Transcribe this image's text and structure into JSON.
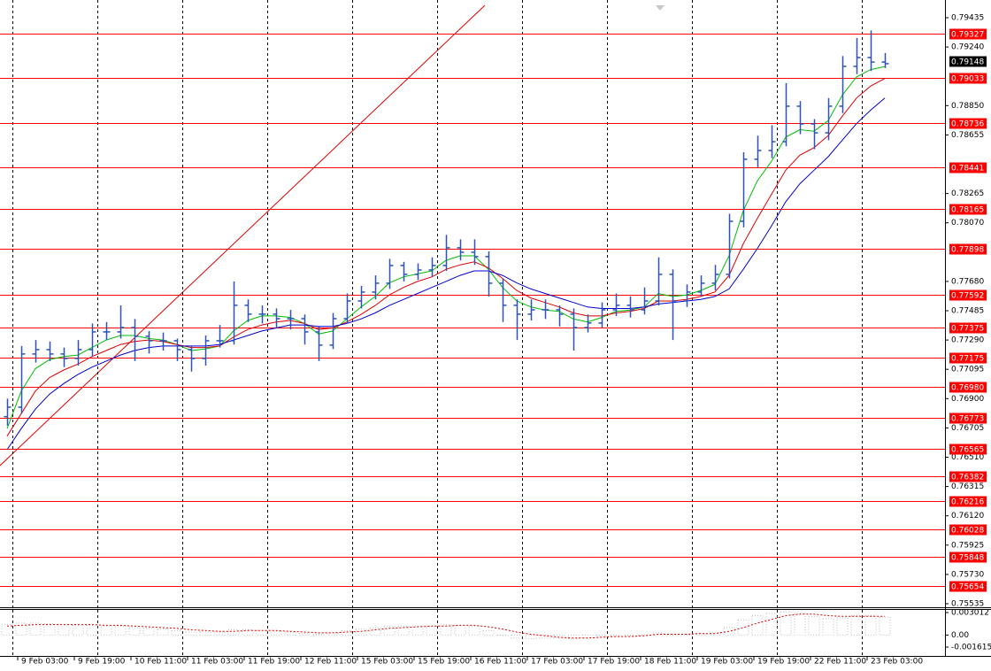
{
  "chart_data": {
    "type": "ohlc",
    "time_labels": [
      "9 Feb 03:00",
      "9 Feb 19:00",
      "10 Feb 11:00",
      "11 Feb 03:00",
      "11 Feb 19:00",
      "12 Feb 11:00",
      "15 Feb 03:00",
      "15 Feb 19:00",
      "16 Feb 11:00",
      "17 Feb 03:00",
      "17 Feb 19:00",
      "18 Feb 11:00",
      "19 Feb 03:00",
      "19 Feb 19:00",
      "22 Feb 11:00",
      "23 Feb 03:00"
    ],
    "color": "#2a52be",
    "open": [
      0.7678,
      0.76843,
      0.77197,
      0.77226,
      0.77197,
      0.77167,
      0.77226,
      0.77344,
      0.77344,
      0.77373,
      0.77315,
      0.77285,
      0.77285,
      0.77226,
      0.77167,
      0.77285,
      0.77285,
      0.77521,
      0.77462,
      0.77462,
      0.77432,
      0.77432,
      0.77344,
      0.77256,
      0.77432,
      0.7755,
      0.77609,
      0.77668,
      0.77786,
      0.77727,
      0.77756,
      0.77786,
      0.77904,
      0.77874,
      0.77845,
      0.77668,
      0.77521,
      0.77462,
      0.77491,
      0.77491,
      0.77462,
      0.77373,
      0.77403,
      0.77491,
      0.77521,
      0.77491,
      0.7755,
      0.77727,
      0.7755,
      0.77609,
      0.77668,
      0.77727,
      0.7808,
      0.78493,
      0.78551,
      0.7861,
      0.78846,
      0.78728,
      0.78669,
      0.78846,
      0.79111,
      0.7917,
      0.7914
    ],
    "high": [
      0.769,
      0.7725,
      0.7729,
      0.7728,
      0.7724,
      0.7729,
      0.774,
      0.7741,
      0.7752,
      0.7743,
      0.7735,
      0.7734,
      0.773,
      0.7725,
      0.7732,
      0.7739,
      0.7768,
      0.7756,
      0.7752,
      0.775,
      0.7749,
      0.7746,
      0.7738,
      0.7747,
      0.776,
      0.7765,
      0.7772,
      0.7783,
      0.7781,
      0.778,
      0.7784,
      0.7799,
      0.7796,
      0.7796,
      0.7788,
      0.777,
      0.7756,
      0.7756,
      0.7756,
      0.7752,
      0.775,
      0.7746,
      0.7754,
      0.776,
      0.7758,
      0.7764,
      0.7784,
      0.7776,
      0.7766,
      0.7772,
      0.7779,
      0.7813,
      0.7854,
      0.7865,
      0.7872,
      0.79,
      0.7888,
      0.7876,
      0.789,
      0.7918,
      0.793,
      0.7935,
      0.792
    ],
    "low": [
      0.7672,
      0.768,
      0.7714,
      0.7715,
      0.7711,
      0.7712,
      0.7718,
      0.7729,
      0.773,
      0.7715,
      0.772,
      0.7722,
      0.7715,
      0.7708,
      0.7712,
      0.7724,
      0.7726,
      0.7741,
      0.774,
      0.7737,
      0.7736,
      0.7726,
      0.7715,
      0.7723,
      0.774,
      0.775,
      0.7756,
      0.7763,
      0.7768,
      0.7769,
      0.7771,
      0.7775,
      0.7782,
      0.7779,
      0.7758,
      0.7741,
      0.7729,
      0.7742,
      0.7743,
      0.7738,
      0.7722,
      0.7734,
      0.7737,
      0.7745,
      0.7744,
      0.7746,
      0.7752,
      0.7729,
      0.7751,
      0.7758,
      0.7762,
      0.777,
      0.7804,
      0.7844,
      0.785,
      0.7858,
      0.7866,
      0.7856,
      0.7862,
      0.788,
      0.7906,
      0.7908,
      0.791
    ],
    "close": [
      0.76843,
      0.77197,
      0.77226,
      0.77197,
      0.77167,
      0.77226,
      0.77344,
      0.77344,
      0.77373,
      0.77315,
      0.77285,
      0.77285,
      0.77226,
      0.77167,
      0.77285,
      0.77285,
      0.77521,
      0.77462,
      0.77462,
      0.77432,
      0.77432,
      0.77344,
      0.77256,
      0.77432,
      0.7755,
      0.77609,
      0.77668,
      0.77786,
      0.77727,
      0.77756,
      0.77786,
      0.77904,
      0.77874,
      0.77845,
      0.77668,
      0.77521,
      0.77462,
      0.77491,
      0.77491,
      0.77462,
      0.77373,
      0.77403,
      0.77491,
      0.77521,
      0.77491,
      0.7755,
      0.77727,
      0.7755,
      0.77609,
      0.77668,
      0.77727,
      0.7808,
      0.78493,
      0.78551,
      0.7861,
      0.78846,
      0.78728,
      0.78669,
      0.78846,
      0.79111,
      0.7917,
      0.7914,
      0.79129
    ],
    "series": [
      {
        "color": "#00c000",
        "values": [
          0.767,
          0.7695,
          0.771,
          0.7716,
          0.7718,
          0.7719,
          0.7724,
          0.7729,
          0.7732,
          0.7732,
          0.773,
          0.7729,
          0.7726,
          0.7722,
          0.7723,
          0.7725,
          0.7735,
          0.7742,
          0.7745,
          0.7745,
          0.7744,
          0.774,
          0.7733,
          0.7735,
          0.7743,
          0.7751,
          0.7758,
          0.7767,
          0.7771,
          0.7773,
          0.7775,
          0.7782,
          0.7785,
          0.7785,
          0.7776,
          0.7764,
          0.7755,
          0.7751,
          0.7749,
          0.7748,
          0.7743,
          0.7741,
          0.7744,
          0.7748,
          0.7749,
          0.7751,
          0.776,
          0.7758,
          0.7759,
          0.7762,
          0.7766,
          0.7785,
          0.7815,
          0.7835,
          0.7848,
          0.7864,
          0.7869,
          0.7868,
          0.7875,
          0.7892,
          0.7904,
          0.7909,
          0.7911
        ]
      },
      {
        "color": "#e00000",
        "values": [
          0.7665,
          0.768,
          0.7695,
          0.7704,
          0.7709,
          0.7713,
          0.7718,
          0.7722,
          0.7726,
          0.7728,
          0.7729,
          0.7728,
          0.7726,
          0.7724,
          0.7724,
          0.7725,
          0.7731,
          0.7736,
          0.7739,
          0.7741,
          0.7742,
          0.774,
          0.7736,
          0.7737,
          0.7741,
          0.7746,
          0.7752,
          0.7759,
          0.7764,
          0.7768,
          0.7771,
          0.7776,
          0.7779,
          0.7781,
          0.7777,
          0.777,
          0.7762,
          0.7757,
          0.7754,
          0.7751,
          0.7747,
          0.7745,
          0.7745,
          0.7747,
          0.7748,
          0.775,
          0.7755,
          0.7755,
          0.7756,
          0.7758,
          0.7761,
          0.7772,
          0.7793,
          0.781,
          0.7826,
          0.7842,
          0.7852,
          0.7857,
          0.7865,
          0.7878,
          0.789,
          0.7898,
          0.7903
        ]
      },
      {
        "color": "#0000d0",
        "values": [
          0.7656,
          0.767,
          0.7683,
          0.7693,
          0.77,
          0.7706,
          0.7711,
          0.7715,
          0.7719,
          0.7722,
          0.7724,
          0.7725,
          0.7725,
          0.7725,
          0.7725,
          0.7726,
          0.7729,
          0.7732,
          0.7735,
          0.7737,
          0.7739,
          0.7739,
          0.7738,
          0.7738,
          0.774,
          0.7743,
          0.7747,
          0.7752,
          0.7756,
          0.776,
          0.7764,
          0.7768,
          0.7772,
          0.7775,
          0.7775,
          0.7772,
          0.7767,
          0.7763,
          0.776,
          0.7757,
          0.7754,
          0.7751,
          0.775,
          0.775,
          0.775,
          0.7751,
          0.7753,
          0.7754,
          0.7755,
          0.7756,
          0.7758,
          0.7763,
          0.7776,
          0.779,
          0.7805,
          0.7821,
          0.7833,
          0.7842,
          0.7851,
          0.7862,
          0.7873,
          0.7882,
          0.789
        ]
      }
    ],
    "ylim": [
      0.75535,
      0.79435
    ],
    "yticks": [
      0.79435,
      {
        "value": 0.7924,
        "label": "0.79240"
      },
      {
        "value": 0.7885,
        "label": "0.78850"
      },
      0.78655,
      0.78265,
      {
        "value": 0.7807,
        "label": "0.78070"
      },
      {
        "value": 0.7768,
        "label": "0.77680"
      },
      0.77485,
      {
        "value": 0.7729,
        "label": "0.77290"
      },
      0.77095,
      {
        "value": 0.769,
        "label": "0.76900"
      },
      0.76705,
      {
        "value": 0.7651,
        "label": "0.76510"
      },
      0.76315,
      {
        "value": 0.7612,
        "label": "0.76120"
      },
      0.75925,
      {
        "value": 0.7573,
        "label": "0.75730"
      },
      0.75535
    ],
    "levels": [
      0.79327,
      0.79033,
      0.78736,
      0.78441,
      0.78165,
      0.77898,
      0.77592,
      0.77375,
      0.77175,
      {
        "value": 0.7698,
        "label": "0.76980"
      },
      0.76773,
      0.76565,
      0.76382,
      0.76216,
      0.76028,
      0.75848,
      0.75654
    ],
    "level_color": "#ff0000",
    "last_price": 0.79148,
    "grid": true,
    "indicator": {
      "type": "histogram",
      "color": "#c0c0c0",
      "signal_color": "#e00000",
      "values": [
        0.0014,
        0.0016,
        0.0016,
        0.0015,
        0.0014,
        0.0013,
        0.0013,
        0.0012,
        0.0012,
        0.001,
        0.0009,
        0.0008,
        0.0006,
        0.0004,
        0.0004,
        0.0004,
        0.0007,
        0.0007,
        0.0006,
        0.0005,
        0.0004,
        0.0002,
        0.0001,
        0.0003,
        0.0006,
        0.0008,
        0.001,
        0.0012,
        0.0012,
        0.0012,
        0.0012,
        0.0014,
        0.0013,
        0.0012,
        0.0006,
        0,
        -0.0004,
        -0.0005,
        -0.0004,
        -0.0004,
        -0.0005,
        -0.0004,
        -0.0002,
        -0.0001,
        -0.0001,
        0,
        0.0003,
        0.0001,
        0.0001,
        0.0002,
        0.0003,
        0.001,
        0.002,
        0.0026,
        0.0029,
        0.0031,
        0.0029,
        0.0025,
        0.0022,
        0.0023,
        0.0026,
        0.0026,
        0.0024
      ],
      "signal": [
        0.0012,
        0.0013,
        0.0014,
        0.0014,
        0.0014,
        0.0014,
        0.0014,
        0.0013,
        0.0013,
        0.0012,
        0.0011,
        0.001,
        0.0009,
        0.0007,
        0.0006,
        0.0005,
        0.0005,
        0.0006,
        0.0006,
        0.0006,
        0.0005,
        0.0004,
        0.0003,
        0.0003,
        0.0004,
        0.0005,
        0.0007,
        0.0009,
        0.001,
        0.0011,
        0.0012,
        0.0012,
        0.0013,
        0.0013,
        0.0011,
        0.0008,
        0.0004,
        0.0001,
        -0.0001,
        -0.0003,
        -0.0004,
        -0.0004,
        -0.0003,
        -0.0002,
        -0.0002,
        -0.0001,
        0.0001,
        0.0001,
        0.0001,
        0.0002,
        0.0002,
        0.0005,
        0.001,
        0.0016,
        0.0021,
        0.0026,
        0.0028,
        0.0028,
        0.0026,
        0.0025,
        0.0025,
        0.0025,
        0.0025
      ],
      "ylim": [
        -0.001615,
        0.003012
      ],
      "yticks": [
        0.003012,
        {
          "value": 0,
          "label": "0.00"
        },
        -0.001615
      ]
    }
  }
}
